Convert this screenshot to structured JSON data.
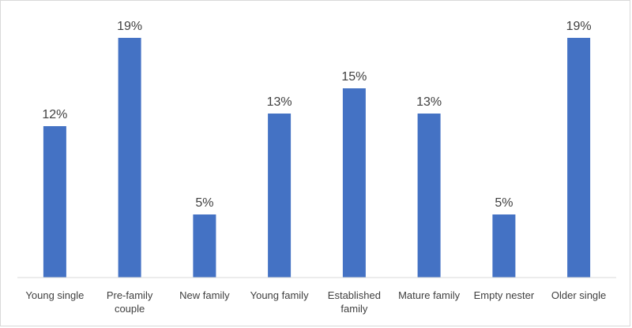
{
  "chart_data": {
    "type": "bar",
    "title": "",
    "xlabel": "",
    "ylabel": "",
    "ylim": [
      0,
      20
    ],
    "grid": false,
    "legend": "none",
    "bar_color": "#4472C4",
    "categories": [
      "Young single",
      "Pre-family couple",
      "New family",
      "Young family",
      "Established family",
      "Mature family",
      "Empty nester",
      "Older single"
    ],
    "values": [
      12,
      19,
      5,
      13,
      15,
      13,
      5,
      19
    ],
    "data_labels": [
      "12%",
      "19%",
      "5%",
      "13%",
      "15%",
      "13%",
      "5%",
      "19%"
    ]
  }
}
